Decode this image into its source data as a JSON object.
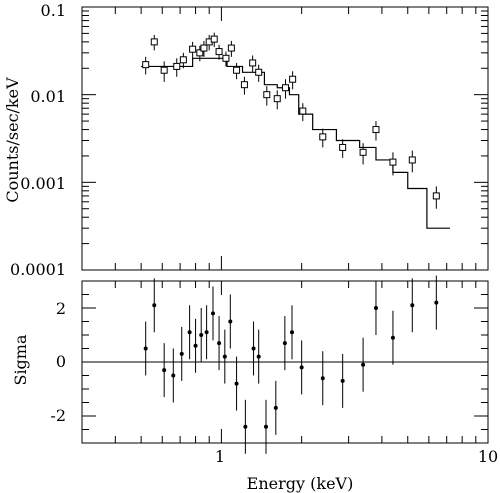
{
  "chart_data": [
    {
      "type": "scatter",
      "title": "",
      "xlabel": "",
      "ylabel": "Counts/sec/keV",
      "x_scale": "log",
      "y_scale": "log",
      "xlim": [
        0.3,
        10
      ],
      "ylim": [
        0.0001,
        0.1
      ],
      "y_tick_labels": [
        "0.1",
        "0.01",
        "0.001",
        "0.0001"
      ],
      "grid": false,
      "series": [
        {
          "kind": "data",
          "points": [
            {
              "x": 0.52,
              "y": 0.022,
              "yerr": 0.005
            },
            {
              "x": 0.56,
              "y": 0.04,
              "yerr": 0.008
            },
            {
              "x": 0.61,
              "y": 0.019,
              "yerr": 0.005
            },
            {
              "x": 0.68,
              "y": 0.021,
              "yerr": 0.005
            },
            {
              "x": 0.72,
              "y": 0.025,
              "yerr": 0.005
            },
            {
              "x": 0.78,
              "y": 0.033,
              "yerr": 0.007
            },
            {
              "x": 0.83,
              "y": 0.03,
              "yerr": 0.006
            },
            {
              "x": 0.86,
              "y": 0.034,
              "yerr": 0.007
            },
            {
              "x": 0.9,
              "y": 0.04,
              "yerr": 0.008
            },
            {
              "x": 0.94,
              "y": 0.043,
              "yerr": 0.008
            },
            {
              "x": 0.98,
              "y": 0.031,
              "yerr": 0.006
            },
            {
              "x": 1.04,
              "y": 0.026,
              "yerr": 0.005
            },
            {
              "x": 1.09,
              "y": 0.034,
              "yerr": 0.007
            },
            {
              "x": 1.14,
              "y": 0.019,
              "yerr": 0.004
            },
            {
              "x": 1.22,
              "y": 0.013,
              "yerr": 0.003
            },
            {
              "x": 1.31,
              "y": 0.023,
              "yerr": 0.005
            },
            {
              "x": 1.38,
              "y": 0.018,
              "yerr": 0.004
            },
            {
              "x": 1.48,
              "y": 0.01,
              "yerr": 0.0025
            },
            {
              "x": 1.62,
              "y": 0.009,
              "yerr": 0.0022
            },
            {
              "x": 1.74,
              "y": 0.012,
              "yerr": 0.003
            },
            {
              "x": 1.85,
              "y": 0.015,
              "yerr": 0.0035
            },
            {
              "x": 2.02,
              "y": 0.0065,
              "yerr": 0.0015
            },
            {
              "x": 2.4,
              "y": 0.0033,
              "yerr": 0.0008
            },
            {
              "x": 2.85,
              "y": 0.0025,
              "yerr": 0.0006
            },
            {
              "x": 3.4,
              "y": 0.0022,
              "yerr": 0.0006
            },
            {
              "x": 3.8,
              "y": 0.004,
              "yerr": 0.001
            },
            {
              "x": 4.4,
              "y": 0.0017,
              "yerr": 0.0005
            },
            {
              "x": 5.2,
              "y": 0.0018,
              "yerr": 0.0005
            },
            {
              "x": 6.4,
              "y": 0.0007,
              "yerr": 0.0002
            }
          ]
        },
        {
          "kind": "model",
          "steps": [
            {
              "x0": 0.5,
              "x1": 0.78,
              "y": 0.021
            },
            {
              "x0": 0.78,
              "x1": 1.05,
              "y": 0.026
            },
            {
              "x0": 1.05,
              "x1": 1.2,
              "y": 0.021
            },
            {
              "x0": 1.2,
              "x1": 1.45,
              "y": 0.018
            },
            {
              "x0": 1.45,
              "x1": 1.62,
              "y": 0.013
            },
            {
              "x0": 1.62,
              "x1": 1.8,
              "y": 0.012
            },
            {
              "x0": 1.8,
              "x1": 1.95,
              "y": 0.01
            },
            {
              "x0": 1.95,
              "x1": 2.2,
              "y": 0.006
            },
            {
              "x0": 2.2,
              "x1": 2.7,
              "y": 0.004
            },
            {
              "x0": 2.7,
              "x1": 3.3,
              "y": 0.003
            },
            {
              "x0": 3.3,
              "x1": 3.8,
              "y": 0.0025
            },
            {
              "x0": 3.8,
              "x1": 4.4,
              "y": 0.0018
            },
            {
              "x0": 4.4,
              "x1": 5.0,
              "y": 0.0013
            },
            {
              "x0": 5.0,
              "x1": 5.9,
              "y": 0.00085
            },
            {
              "x0": 5.9,
              "x1": 7.2,
              "y": 0.0003
            }
          ]
        }
      ]
    },
    {
      "type": "scatter",
      "title": "",
      "xlabel": "Energy (keV)",
      "ylabel": "Sigma",
      "x_scale": "log",
      "y_scale": "linear",
      "xlim": [
        0.3,
        10
      ],
      "ylim": [
        -3,
        3
      ],
      "x_tick_labels": [
        "1",
        "10"
      ],
      "y_tick_labels": [
        "2",
        "0",
        "-2"
      ],
      "zero_line": true,
      "grid": false,
      "series": [
        {
          "kind": "residuals",
          "points": [
            {
              "x": 0.52,
              "y": 0.5,
              "yerr": 1.0
            },
            {
              "x": 0.56,
              "y": 2.1,
              "yerr": 1.0
            },
            {
              "x": 0.61,
              "y": -0.3,
              "yerr": 1.0
            },
            {
              "x": 0.66,
              "y": -0.5,
              "yerr": 1.0
            },
            {
              "x": 0.71,
              "y": 0.3,
              "yerr": 1.0
            },
            {
              "x": 0.76,
              "y": 1.1,
              "yerr": 1.0
            },
            {
              "x": 0.8,
              "y": 0.6,
              "yerr": 1.0
            },
            {
              "x": 0.84,
              "y": 1.0,
              "yerr": 1.0
            },
            {
              "x": 0.88,
              "y": 1.1,
              "yerr": 1.0
            },
            {
              "x": 0.93,
              "y": 1.8,
              "yerr": 1.0
            },
            {
              "x": 0.98,
              "y": 0.7,
              "yerr": 1.0
            },
            {
              "x": 1.03,
              "y": 0.2,
              "yerr": 1.0
            },
            {
              "x": 1.08,
              "y": 1.5,
              "yerr": 1.0
            },
            {
              "x": 1.14,
              "y": -0.8,
              "yerr": 1.0
            },
            {
              "x": 1.23,
              "y": -2.4,
              "yerr": 1.0
            },
            {
              "x": 1.32,
              "y": 0.5,
              "yerr": 1.0
            },
            {
              "x": 1.38,
              "y": 0.2,
              "yerr": 1.0
            },
            {
              "x": 1.47,
              "y": -2.4,
              "yerr": 1.0
            },
            {
              "x": 1.6,
              "y": -1.7,
              "yerr": 1.0
            },
            {
              "x": 1.73,
              "y": 0.7,
              "yerr": 1.0
            },
            {
              "x": 1.84,
              "y": 1.1,
              "yerr": 1.0
            },
            {
              "x": 2.0,
              "y": -0.2,
              "yerr": 1.0
            },
            {
              "x": 2.4,
              "y": -0.6,
              "yerr": 1.0
            },
            {
              "x": 2.85,
              "y": -0.7,
              "yerr": 1.0
            },
            {
              "x": 3.4,
              "y": -0.1,
              "yerr": 1.0
            },
            {
              "x": 3.8,
              "y": 2.0,
              "yerr": 1.0
            },
            {
              "x": 4.4,
              "y": 0.9,
              "yerr": 1.0
            },
            {
              "x": 5.2,
              "y": 2.1,
              "yerr": 1.0
            },
            {
              "x": 6.4,
              "y": 2.2,
              "yerr": 1.0
            }
          ]
        }
      ]
    }
  ]
}
